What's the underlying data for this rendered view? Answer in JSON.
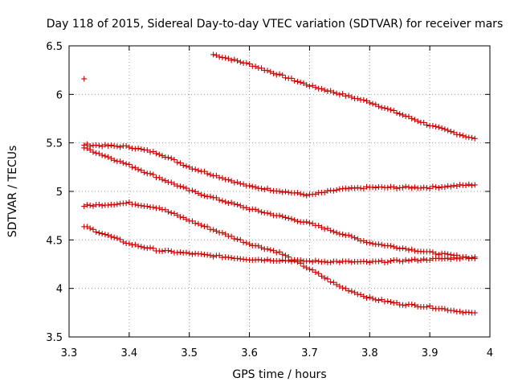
{
  "chart_data": {
    "type": "scatter",
    "title": "Day 118 of 2015, Sidereal Day-to-day VTEC variation (SDTVAR) for receiver mars",
    "xlabel": "GPS time / hours",
    "ylabel": "SDTVAR / TECUs",
    "xlim": [
      3.3,
      4.0
    ],
    "ylim": [
      3.5,
      6.5
    ],
    "x_ticks": [
      3.3,
      3.4,
      3.5,
      3.6,
      3.7,
      3.8,
      3.9,
      4.0
    ],
    "x_tick_labels": [
      "3.3",
      "3.4",
      "3.5",
      "3.6",
      "3.7",
      "3.8",
      "3.9",
      "4"
    ],
    "y_ticks": [
      3.5,
      4.0,
      4.5,
      5.0,
      5.5,
      6.0,
      6.5
    ],
    "y_tick_labels": [
      "3.5",
      "4",
      "4.5",
      "5",
      "5.5",
      "6",
      "6.5"
    ],
    "grid": true,
    "marker": "+",
    "color": "#cc0000",
    "series": [
      {
        "name": "series-1",
        "points": [
          [
            3.325,
            6.16
          ]
        ]
      },
      {
        "name": "series-2",
        "anchors": [
          [
            3.54,
            6.41
          ],
          [
            3.6,
            6.31
          ],
          [
            3.7,
            6.09
          ],
          [
            3.8,
            5.92
          ],
          [
            3.9,
            5.68
          ],
          [
            3.975,
            5.54
          ]
        ]
      },
      {
        "name": "series-3",
        "anchors": [
          [
            3.325,
            5.48
          ],
          [
            3.4,
            5.46
          ],
          [
            3.45,
            5.39
          ],
          [
            3.5,
            5.25
          ],
          [
            3.6,
            5.05
          ],
          [
            3.7,
            4.96
          ],
          [
            3.75,
            5.02
          ],
          [
            3.8,
            5.04
          ],
          [
            3.9,
            5.04
          ],
          [
            3.975,
            5.07
          ]
        ]
      },
      {
        "name": "series-4",
        "anchors": [
          [
            3.325,
            5.45
          ],
          [
            3.4,
            5.27
          ],
          [
            3.5,
            5.01
          ],
          [
            3.6,
            4.82
          ],
          [
            3.7,
            4.67
          ],
          [
            3.8,
            4.47
          ],
          [
            3.9,
            4.37
          ],
          [
            3.975,
            4.31
          ]
        ]
      },
      {
        "name": "series-5",
        "anchors": [
          [
            3.325,
            4.85
          ],
          [
            3.4,
            4.88
          ],
          [
            3.45,
            4.83
          ],
          [
            3.5,
            4.7
          ],
          [
            3.6,
            4.46
          ],
          [
            3.65,
            4.37
          ],
          [
            3.7,
            4.2
          ],
          [
            3.75,
            4.02
          ],
          [
            3.8,
            3.9
          ],
          [
            3.85,
            3.84
          ],
          [
            3.9,
            3.81
          ],
          [
            3.975,
            3.74
          ]
        ]
      },
      {
        "name": "series-6",
        "anchors": [
          [
            3.325,
            4.64
          ],
          [
            3.4,
            4.46
          ],
          [
            3.45,
            4.39
          ],
          [
            3.5,
            4.36
          ],
          [
            3.6,
            4.3
          ],
          [
            3.7,
            4.28
          ],
          [
            3.8,
            4.27
          ],
          [
            3.9,
            4.3
          ],
          [
            3.975,
            4.32
          ]
        ]
      }
    ]
  }
}
